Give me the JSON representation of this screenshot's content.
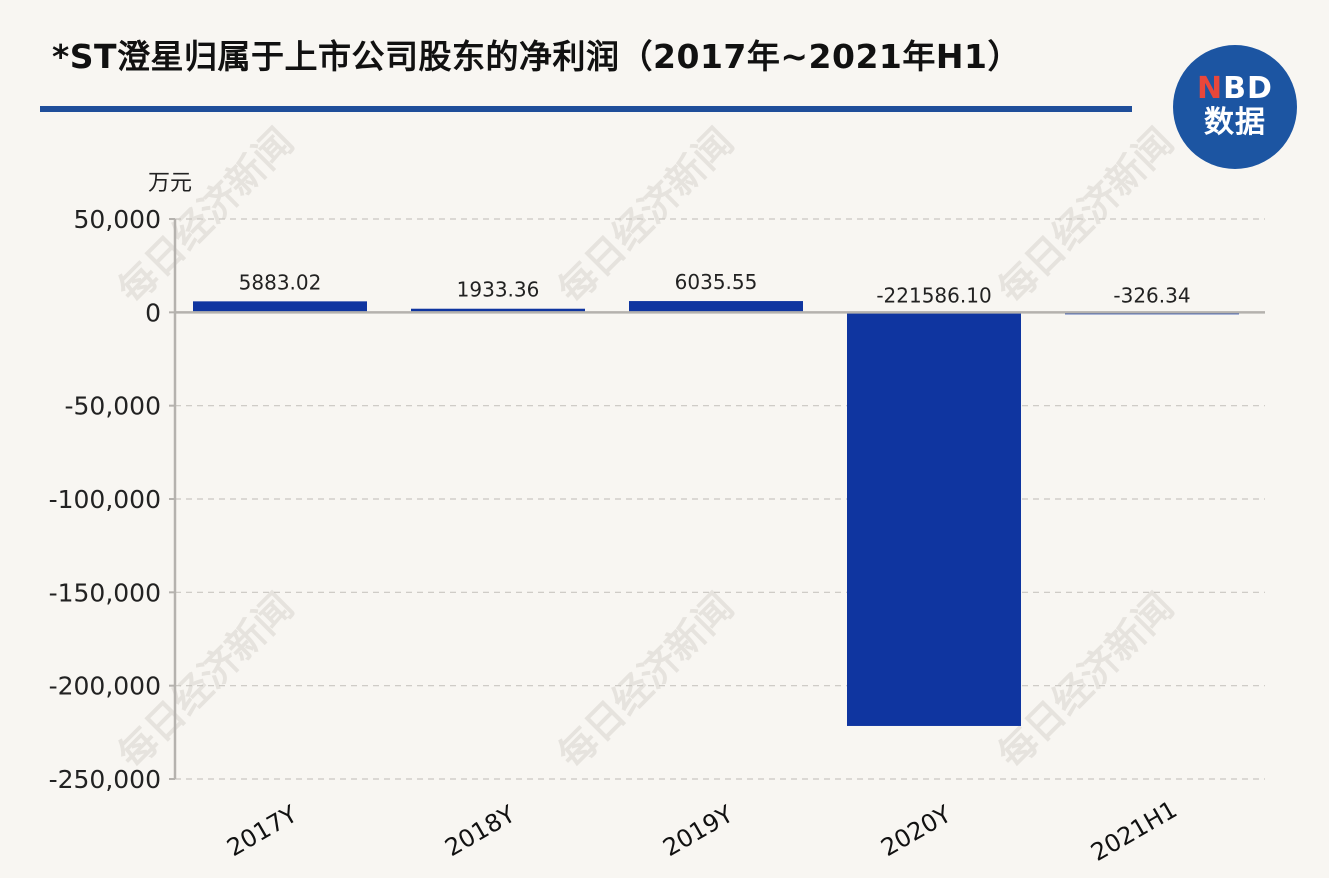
{
  "title": "*ST澄星归属于上市公司股东的净利润（2017年~2021年H1）",
  "logo": {
    "top_n": "N",
    "top_rest": "BD",
    "bottom": "数据"
  },
  "watermark_text": "每日经济新闻",
  "colors": {
    "bar": "#0f35a0",
    "axis": "#b5b2ae",
    "grid": "#c9c6c1",
    "title_rule": "#1f4e9a",
    "logo_bg": "#1c55a2",
    "logo_accent": "#e8473b"
  },
  "chart_data": {
    "type": "bar",
    "unit": "万元",
    "categories": [
      "2017Y",
      "2018Y",
      "2019Y",
      "2020Y",
      "2021H1"
    ],
    "values": [
      5883.02,
      1933.36,
      6035.55,
      -221586.1,
      -326.34
    ],
    "value_labels": [
      "5883.02",
      "1933.36",
      "6035.55",
      "-221586.10",
      "-326.34"
    ],
    "ylim": [
      -250000,
      50000
    ],
    "yticks": [
      50000,
      0,
      -50000,
      -100000,
      -150000,
      -200000,
      -250000
    ],
    "ytick_labels": [
      "50,000",
      "0",
      "-50,000",
      "-100,000",
      "-150,000",
      "-200,000",
      "-250,000"
    ],
    "grid": true,
    "gridline_style": "dashed"
  }
}
